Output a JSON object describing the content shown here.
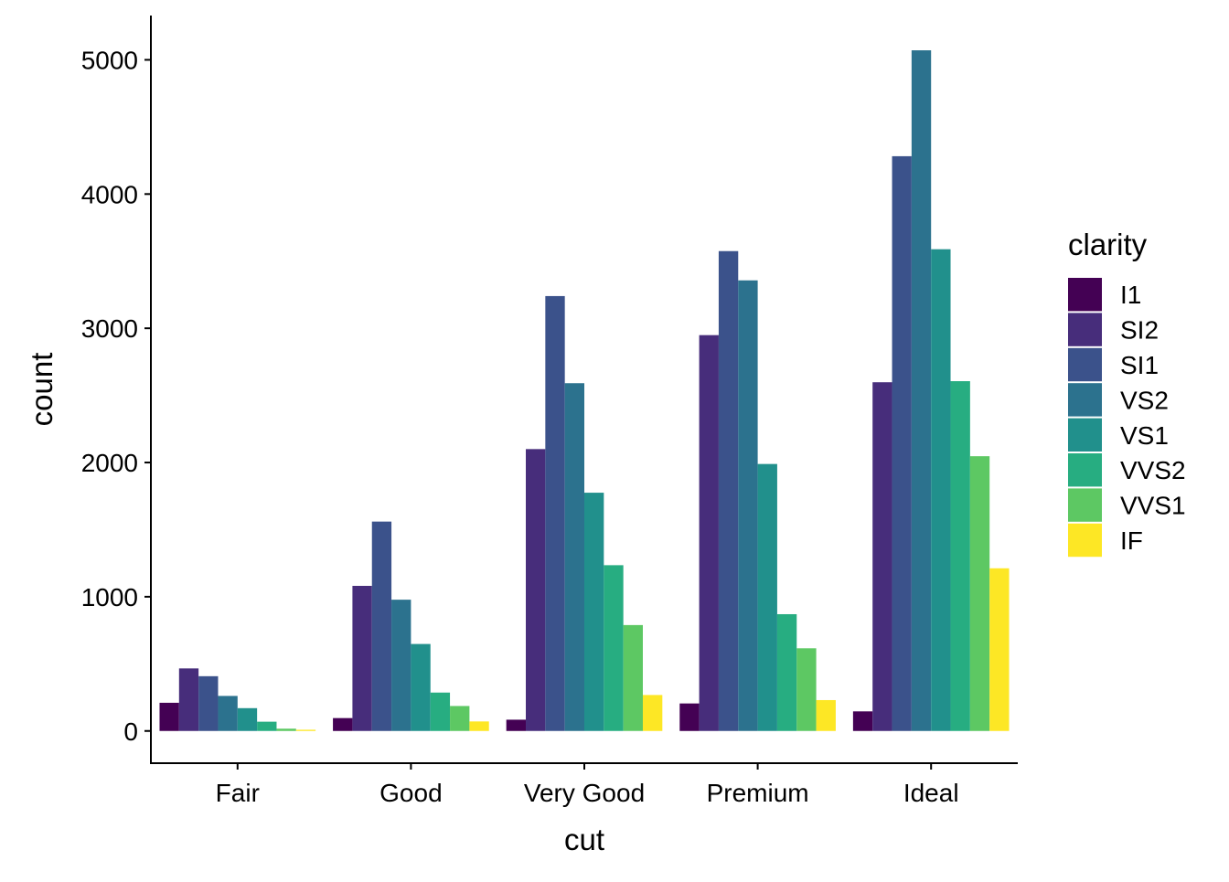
{
  "chart_data": {
    "type": "bar",
    "xlabel": "cut",
    "ylabel": "count",
    "categories": [
      "Fair",
      "Good",
      "Very Good",
      "Premium",
      "Ideal"
    ],
    "ylim": [
      -240,
      5330
    ],
    "yticks": [
      0,
      1000,
      2000,
      3000,
      4000,
      5000
    ],
    "ytick_labels": [
      "0",
      "1000",
      "2000",
      "3000",
      "4000",
      "5000"
    ],
    "legend": {
      "title": "clarity",
      "position": "right"
    },
    "grid": false,
    "series": [
      {
        "name": "I1",
        "color": "#440154",
        "values": [
          210,
          96,
          84,
          205,
          146
        ]
      },
      {
        "name": "SI2",
        "color": "#472D7B",
        "values": [
          466,
          1081,
          2100,
          2949,
          2598
        ]
      },
      {
        "name": "SI1",
        "color": "#3B528B",
        "values": [
          408,
          1560,
          3240,
          3575,
          4282
        ]
      },
      {
        "name": "VS2",
        "color": "#2C728E",
        "values": [
          261,
          978,
          2591,
          3357,
          5071
        ]
      },
      {
        "name": "VS1",
        "color": "#21908C",
        "values": [
          170,
          648,
          1775,
          1989,
          3589
        ]
      },
      {
        "name": "VVS2",
        "color": "#27AD81",
        "values": [
          69,
          286,
          1235,
          870,
          2606
        ]
      },
      {
        "name": "VVS1",
        "color": "#5DC863",
        "values": [
          17,
          186,
          789,
          616,
          2047
        ]
      },
      {
        "name": "IF",
        "color": "#FDE725",
        "values": [
          9,
          71,
          268,
          230,
          1212
        ]
      }
    ]
  }
}
